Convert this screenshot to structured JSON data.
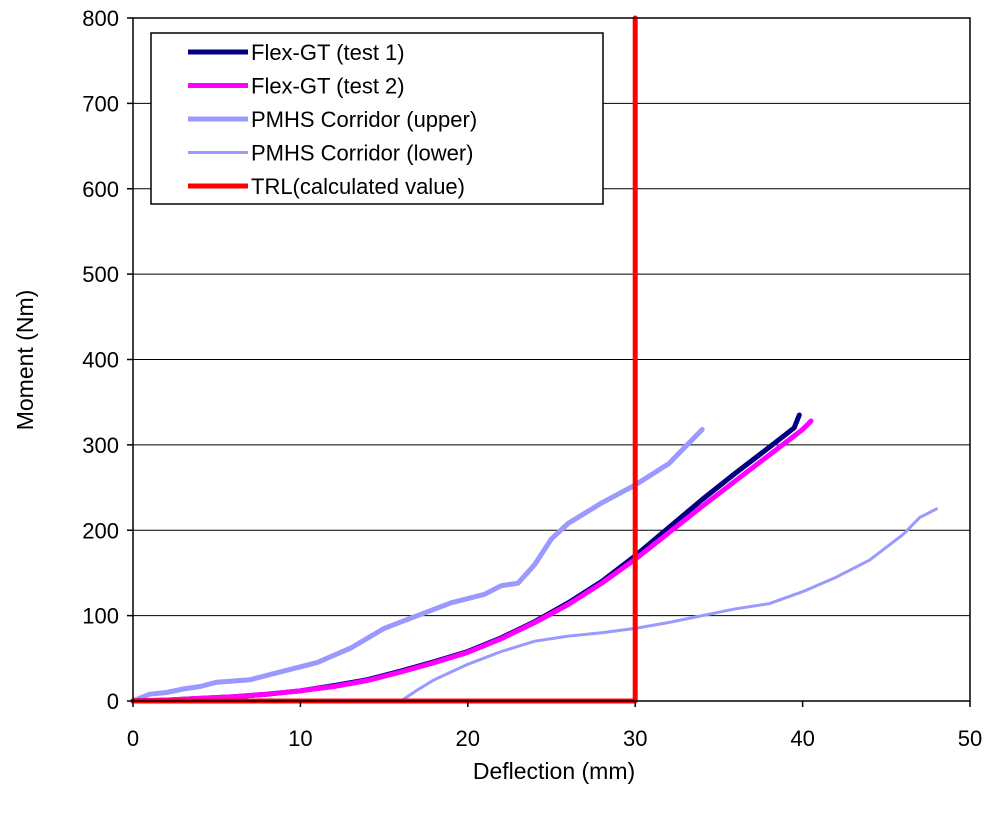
{
  "chart_data": {
    "type": "line",
    "xlabel": "Deflection (mm)",
    "ylabel": "Moment (Nm)",
    "xlim": [
      0,
      50
    ],
    "ylim": [
      0,
      800
    ],
    "xticks": [
      0,
      10,
      20,
      30,
      40,
      50
    ],
    "yticks": [
      0,
      100,
      200,
      300,
      400,
      500,
      600,
      700,
      800
    ],
    "grid": "horizontal",
    "legend_position": "top-left",
    "series": [
      {
        "name": "Flex-GT (test 1)",
        "color": "#000080",
        "width": "thick",
        "x": [
          0,
          2,
          4,
          6,
          8,
          10,
          12,
          14,
          16,
          18,
          20,
          22,
          24,
          26,
          28,
          30,
          32,
          34,
          36,
          38,
          39.5,
          39.8
        ],
        "y": [
          0,
          1,
          3,
          5,
          8,
          12,
          18,
          25,
          35,
          46,
          58,
          74,
          93,
          115,
          140,
          170,
          203,
          236,
          267,
          297,
          320,
          335
        ]
      },
      {
        "name": "Flex-GT (test 2)",
        "color": "#FF00FF",
        "width": "thick",
        "x": [
          0,
          2,
          4,
          6,
          8,
          10,
          12,
          14,
          16,
          18,
          20,
          22,
          24,
          26,
          28,
          30,
          32,
          34,
          36,
          38,
          40,
          40.5
        ],
        "y": [
          0,
          1,
          3,
          5,
          8,
          12,
          17,
          24,
          34,
          45,
          57,
          73,
          92,
          113,
          138,
          166,
          197,
          228,
          258,
          288,
          318,
          328
        ]
      },
      {
        "name": "PMHS Corridor (upper)",
        "color": "#9999FF",
        "width": "thick",
        "x": [
          0,
          1,
          2,
          3,
          4,
          5,
          7,
          9,
          11,
          13,
          15,
          17,
          19,
          21,
          22,
          23,
          24,
          25,
          26,
          28,
          30,
          32,
          34
        ],
        "y": [
          0,
          8,
          10,
          14,
          17,
          22,
          25,
          35,
          45,
          62,
          85,
          100,
          115,
          125,
          135,
          138,
          160,
          190,
          208,
          232,
          253,
          278,
          318
        ]
      },
      {
        "name": "PMHS Corridor (lower)",
        "color": "#9999FF",
        "width": "thin",
        "x": [
          16,
          17,
          18,
          20,
          22,
          24,
          26,
          28,
          30,
          32,
          34,
          36,
          38,
          40,
          42,
          44,
          46,
          47,
          48
        ],
        "y": [
          0,
          13,
          25,
          43,
          58,
          70,
          76,
          80,
          85,
          92,
          100,
          108,
          114,
          128,
          145,
          165,
          195,
          215,
          225
        ]
      },
      {
        "name": "TRL(calculated value)",
        "color": "#FF0000",
        "width": "thick",
        "x": [
          0,
          30,
          30
        ],
        "y": [
          0,
          0,
          800
        ]
      }
    ]
  }
}
